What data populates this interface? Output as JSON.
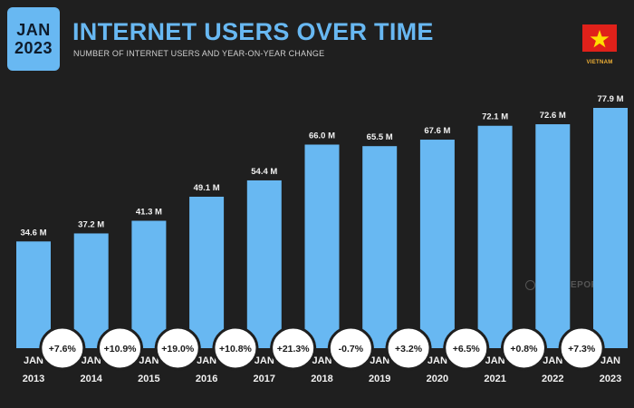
{
  "badge": {
    "month": "JAN",
    "year": "2023"
  },
  "header": {
    "title": "INTERNET USERS OVER TIME",
    "subtitle": "NUMBER OF INTERNET USERS AND YEAR-ON-YEAR CHANGE"
  },
  "country": "VIETNAM",
  "watermark": "DATAREPORTAL",
  "colors": {
    "bar": "#68b8f2",
    "background": "#1f1f1f",
    "accent_label": "#68b8f2",
    "flag_red": "#e0211a",
    "flag_star": "#ffde00"
  },
  "chart_data": {
    "type": "bar",
    "categories": [
      "JAN 2013",
      "JAN 2014",
      "JAN 2015",
      "JAN 2016",
      "JAN 2017",
      "JAN 2018",
      "JAN 2019",
      "JAN 2020",
      "JAN 2021",
      "JAN 2022",
      "JAN 2023"
    ],
    "category_lines": [
      [
        "JAN",
        "2013"
      ],
      [
        "JAN",
        "2014"
      ],
      [
        "JAN",
        "2015"
      ],
      [
        "JAN",
        "2016"
      ],
      [
        "JAN",
        "2017"
      ],
      [
        "JAN",
        "2018"
      ],
      [
        "JAN",
        "2019"
      ],
      [
        "JAN",
        "2020"
      ],
      [
        "JAN",
        "2021"
      ],
      [
        "JAN",
        "2022"
      ],
      [
        "JAN",
        "2023"
      ]
    ],
    "values": [
      34.6,
      37.2,
      41.3,
      49.1,
      54.4,
      66.0,
      65.5,
      67.6,
      72.1,
      72.6,
      77.9
    ],
    "value_labels": [
      "34.6 M",
      "37.2 M",
      "41.3 M",
      "49.1 M",
      "54.4 M",
      "66.0 M",
      "65.5 M",
      "67.6 M",
      "72.1 M",
      "72.6 M",
      "77.9 M"
    ],
    "yoy_changes": [
      "+7.6%",
      "+10.9%",
      "+19.0%",
      "+10.8%",
      "+21.3%",
      "-0.7%",
      "+3.2%",
      "+6.5%",
      "+0.8%",
      "+7.3%"
    ],
    "unit": "M",
    "ylim": [
      0,
      83
    ],
    "grid": false,
    "legend": "none"
  }
}
